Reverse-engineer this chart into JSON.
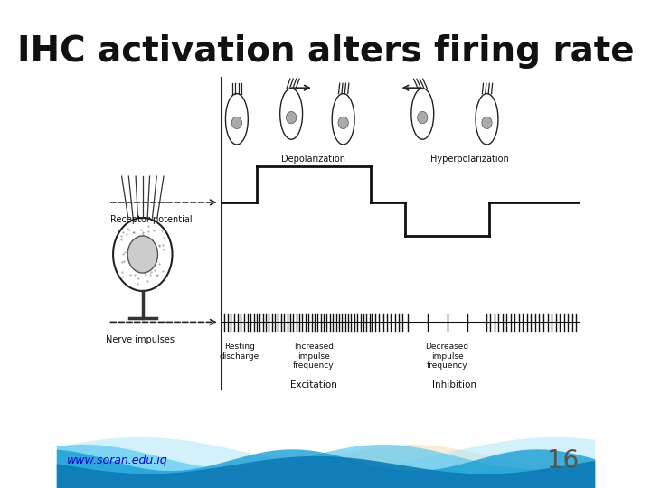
{
  "title": "IHC activation alters firing rate",
  "title_fontsize": 28,
  "background_color": "#ffffff",
  "url_text": "www.soran.edu.iq",
  "page_number": "16",
  "url_color": "#0000cc",
  "page_color": "#555555",
  "cream_color": "#f5e6c8"
}
